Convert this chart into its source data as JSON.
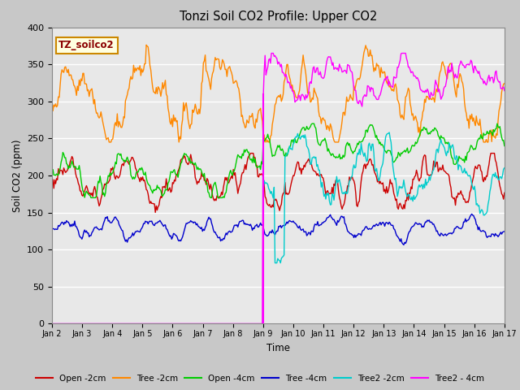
{
  "title": "Tonzi Soil CO2 Profile: Upper CO2",
  "ylabel": "Soil CO2 (ppm)",
  "xlabel": "Time",
  "ylim": [
    0,
    400
  ],
  "xlim": [
    0,
    15
  ],
  "label_box": "TZ_soilco2",
  "vline_x": 7.0,
  "vline_color": "#ff00ff",
  "legend_entries": [
    "Open -2cm",
    "Tree -2cm",
    "Open -4cm",
    "Tree -4cm",
    "Tree2 -2cm",
    "Tree2 - 4cm"
  ],
  "line_colors": [
    "#cc0000",
    "#ff8800",
    "#00cc00",
    "#0000cc",
    "#00cccc",
    "#ff00ff"
  ],
  "n_points": 500,
  "days": 15
}
